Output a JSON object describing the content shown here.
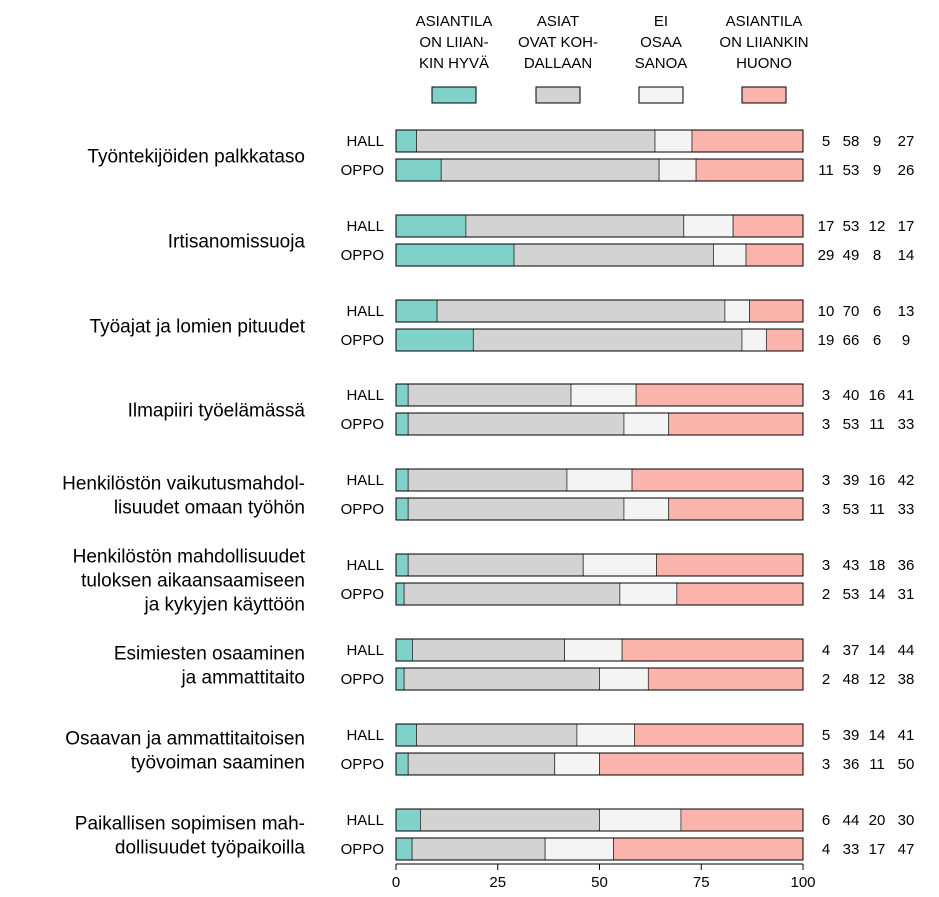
{
  "chart_data": {
    "type": "bar",
    "orientation": "horizontal",
    "stacked": true,
    "xlim": [
      0,
      100
    ],
    "x_ticks": [
      "0",
      "25",
      "50",
      "75",
      "100"
    ],
    "groups": [
      "HALL",
      "OPPO"
    ],
    "series": [
      {
        "name": "ASIANTILA ON LIIAN-KIN HYVÄ",
        "label_lines": [
          "ASIANTILA",
          "ON LIIAN-",
          "KIN HYVÄ"
        ],
        "color": "#7fd1c9"
      },
      {
        "name": "ASIAT OVAT KOH-DALLAAN",
        "label_lines": [
          "ASIAT",
          "OVAT KOH-",
          "DALLAAN"
        ],
        "color": "#d3d3d3"
      },
      {
        "name": "EI OSAA SANOA",
        "label_lines": [
          "EI",
          "OSAA",
          "SANOA"
        ],
        "color": "#f4f4f4"
      },
      {
        "name": "ASIANTILA ON LIIANKIN HUONO",
        "label_lines": [
          "ASIANTILA",
          "ON LIIANKIN",
          "HUONO"
        ],
        "color": "#fbb4ab"
      }
    ],
    "categories": [
      {
        "label_lines": [
          "Työntekijöiden palkkataso"
        ],
        "HALL": [
          5,
          58,
          9,
          27
        ],
        "OPPO": [
          11,
          53,
          9,
          26
        ]
      },
      {
        "label_lines": [
          "Irtisanomissuoja"
        ],
        "HALL": [
          17,
          53,
          12,
          17
        ],
        "OPPO": [
          29,
          49,
          8,
          14
        ]
      },
      {
        "label_lines": [
          "Työajat ja lomien pituudet"
        ],
        "HALL": [
          10,
          70,
          6,
          13
        ],
        "OPPO": [
          19,
          66,
          6,
          9
        ]
      },
      {
        "label_lines": [
          "Ilmapiiri työelämässä"
        ],
        "HALL": [
          3,
          40,
          16,
          41
        ],
        "OPPO": [
          3,
          53,
          11,
          33
        ]
      },
      {
        "label_lines": [
          "Henkilöstön vaikutusmahdol-",
          "lisuudet omaan työhön"
        ],
        "HALL": [
          3,
          39,
          16,
          42
        ],
        "OPPO": [
          3,
          53,
          11,
          33
        ]
      },
      {
        "label_lines": [
          "Henkilöstön mahdollisuudet",
          "tuloksen aikaansaamiseen",
          "ja kykyjen käyttöön"
        ],
        "HALL": [
          3,
          43,
          18,
          36
        ],
        "OPPO": [
          2,
          53,
          14,
          31
        ]
      },
      {
        "label_lines": [
          "Esimiesten osaaminen",
          "ja ammattitaito"
        ],
        "HALL": [
          4,
          37,
          14,
          44
        ],
        "OPPO": [
          2,
          48,
          12,
          38
        ]
      },
      {
        "label_lines": [
          "Osaavan ja ammattitaitoisen",
          "työvoiman saaminen"
        ],
        "HALL": [
          5,
          39,
          14,
          41
        ],
        "OPPO": [
          3,
          36,
          11,
          50
        ]
      },
      {
        "label_lines": [
          "Paikallisen sopimisen mah-",
          "dollisuudet työpaikoilla"
        ],
        "HALL": [
          6,
          44,
          20,
          30
        ],
        "OPPO": [
          4,
          33,
          17,
          47
        ]
      }
    ]
  }
}
